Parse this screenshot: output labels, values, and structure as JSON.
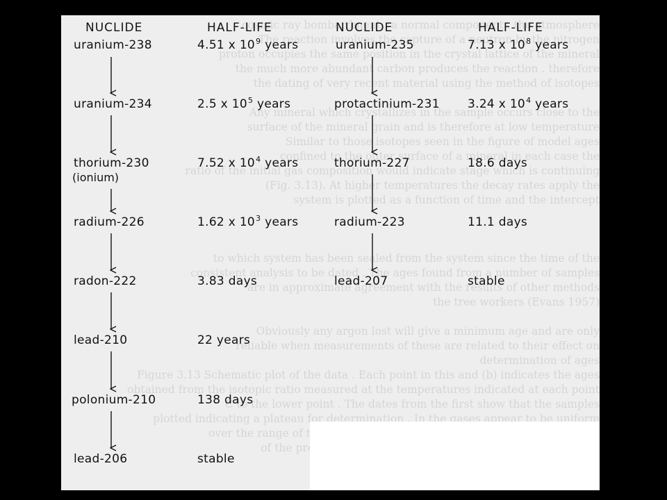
{
  "headers": {
    "left_nuclide": "NUCLIDE",
    "left_half_life": "HALF-LIFE",
    "right_nuclide": "NUCLIDE",
    "right_half_life": "HALF-LIFE"
  },
  "u238_series": [
    {
      "nuclide": "uranium-238",
      "hl_base": "4.51 x 10",
      "hl_exp": "9",
      "hl_unit": " years"
    },
    {
      "nuclide": "uranium-234",
      "hl_base": "2.5 x 10",
      "hl_exp": "5",
      "hl_unit": " years"
    },
    {
      "nuclide": "thorium-230",
      "hl_base": "7.52 x 10",
      "hl_exp": "4",
      "hl_unit": " years",
      "note": "(ionium)"
    },
    {
      "nuclide": "radium-226",
      "hl_base": "1.62 x 10",
      "hl_exp": "3",
      "hl_unit": " years"
    },
    {
      "nuclide": "radon-222",
      "hl_base": "3.83 days",
      "hl_exp": "",
      "hl_unit": ""
    },
    {
      "nuclide": "lead-210",
      "hl_base": "22 years",
      "hl_exp": "",
      "hl_unit": ""
    },
    {
      "nuclide": "polonium-210",
      "hl_base": "138 days",
      "hl_exp": "",
      "hl_unit": ""
    },
    {
      "nuclide": "lead-206",
      "hl_base": "stable",
      "hl_exp": "",
      "hl_unit": ""
    }
  ],
  "u235_series": [
    {
      "nuclide": "uranium-235",
      "hl_base": "7.13 x 10",
      "hl_exp": "8",
      "hl_unit": " years"
    },
    {
      "nuclide": "protactinium-231",
      "hl_base": "3.24 x 10",
      "hl_exp": "4",
      "hl_unit": " years"
    },
    {
      "nuclide": "thorium-227",
      "hl_base": "18.6 days",
      "hl_exp": "",
      "hl_unit": ""
    },
    {
      "nuclide": "radium-223",
      "hl_base": "11.1 days",
      "hl_exp": "",
      "hl_unit": ""
    },
    {
      "nuclide": "lead-207",
      "hl_base": "stable",
      "hl_exp": "",
      "hl_unit": ""
    }
  ],
  "colors": {
    "background": "#000000",
    "page": "#eeeeee",
    "ink": "#111111"
  }
}
